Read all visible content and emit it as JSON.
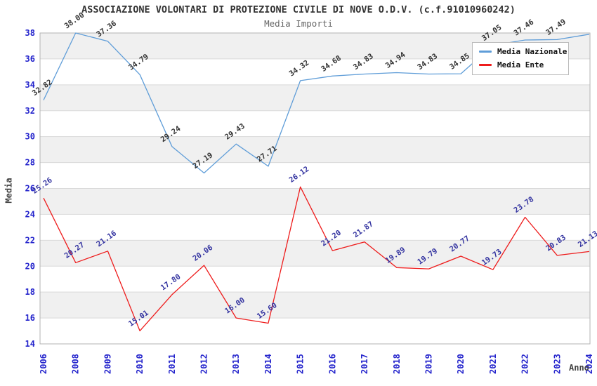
{
  "chart_data": {
    "type": "line",
    "title": "ASSOCIAZIONE VOLONTARI DI PROTEZIONE CIVILE DI NOVE O.D.V. (c.f.91010960242)",
    "subtitle": "Media Importi",
    "xlabel": "Anno",
    "ylabel": "Media",
    "ylim": [
      14,
      38
    ],
    "ytick_step": 2,
    "grid": true,
    "legend_position": "top-right",
    "categories": [
      "2006",
      "2008",
      "2009",
      "2010",
      "2011",
      "2012",
      "2013",
      "2014",
      "2015",
      "2016",
      "2017",
      "2018",
      "2019",
      "2020",
      "2021",
      "2022",
      "2023",
      "2024"
    ],
    "series": [
      {
        "name": "Media Nazionale",
        "color": "#5f9dd8",
        "label_color": "#333333",
        "values": [
          32.82,
          38.0,
          37.36,
          34.79,
          29.24,
          27.19,
          29.43,
          27.71,
          34.32,
          34.68,
          34.83,
          34.94,
          34.83,
          34.85,
          37.05,
          37.46,
          37.49,
          37.9
        ],
        "labels": [
          "32.82",
          "38.00",
          "37.36",
          "34.79",
          "29.24",
          "27.19",
          "29.43",
          "27.71",
          "34.32",
          "34.68",
          "34.83",
          "34.94",
          "34.83",
          "34.85",
          "37.05",
          "37.46",
          "37.49",
          ""
        ]
      },
      {
        "name": "Media Ente",
        "color": "#ee1c1c",
        "label_color": "#3333a0",
        "values": [
          25.26,
          20.27,
          21.16,
          15.01,
          17.8,
          20.06,
          16.0,
          15.6,
          26.12,
          21.2,
          21.87,
          19.89,
          19.79,
          20.77,
          19.73,
          23.78,
          20.83,
          21.13
        ],
        "labels": [
          "25.26",
          "20.27",
          "21.16",
          "15.01",
          "17.80",
          "20.06",
          "16.00",
          "15.60",
          "26.12",
          "21.20",
          "21.87",
          "19.89",
          "19.79",
          "20.77",
          "19.73",
          "23.78",
          "20.83",
          "21.13"
        ]
      }
    ]
  },
  "colors": {
    "band_gray": "#f0f0f0",
    "band_white": "#ffffff",
    "gridline": "#d9d9d9",
    "plot_border": "#b3b3b3",
    "axis_tick_label": "#2424cc",
    "title": "#333333",
    "subtitle": "#666666",
    "axis_title": "#444444"
  }
}
